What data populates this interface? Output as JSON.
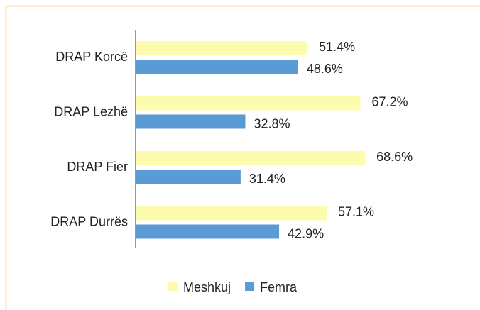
{
  "chart_data": {
    "type": "hbar",
    "categories": [
      "DRAP Korcë",
      "DRAP Lezhë",
      "DRAP Fier",
      "DRAP Durrës"
    ],
    "series": [
      {
        "name": "Meshkuj",
        "color": "#fdfbad",
        "values": [
          51.4,
          67.2,
          68.6,
          57.1
        ],
        "value_labels": [
          "51.4%",
          "67.2%",
          "68.6%",
          "57.1%"
        ]
      },
      {
        "name": "Femra",
        "color": "#5b9bd5",
        "values": [
          48.6,
          32.8,
          31.4,
          42.9
        ],
        "value_labels": [
          "48.6%",
          "32.8%",
          "31.4%",
          "42.9%"
        ]
      }
    ],
    "xlim": [
      0,
      100
    ],
    "legend": "bottom"
  }
}
